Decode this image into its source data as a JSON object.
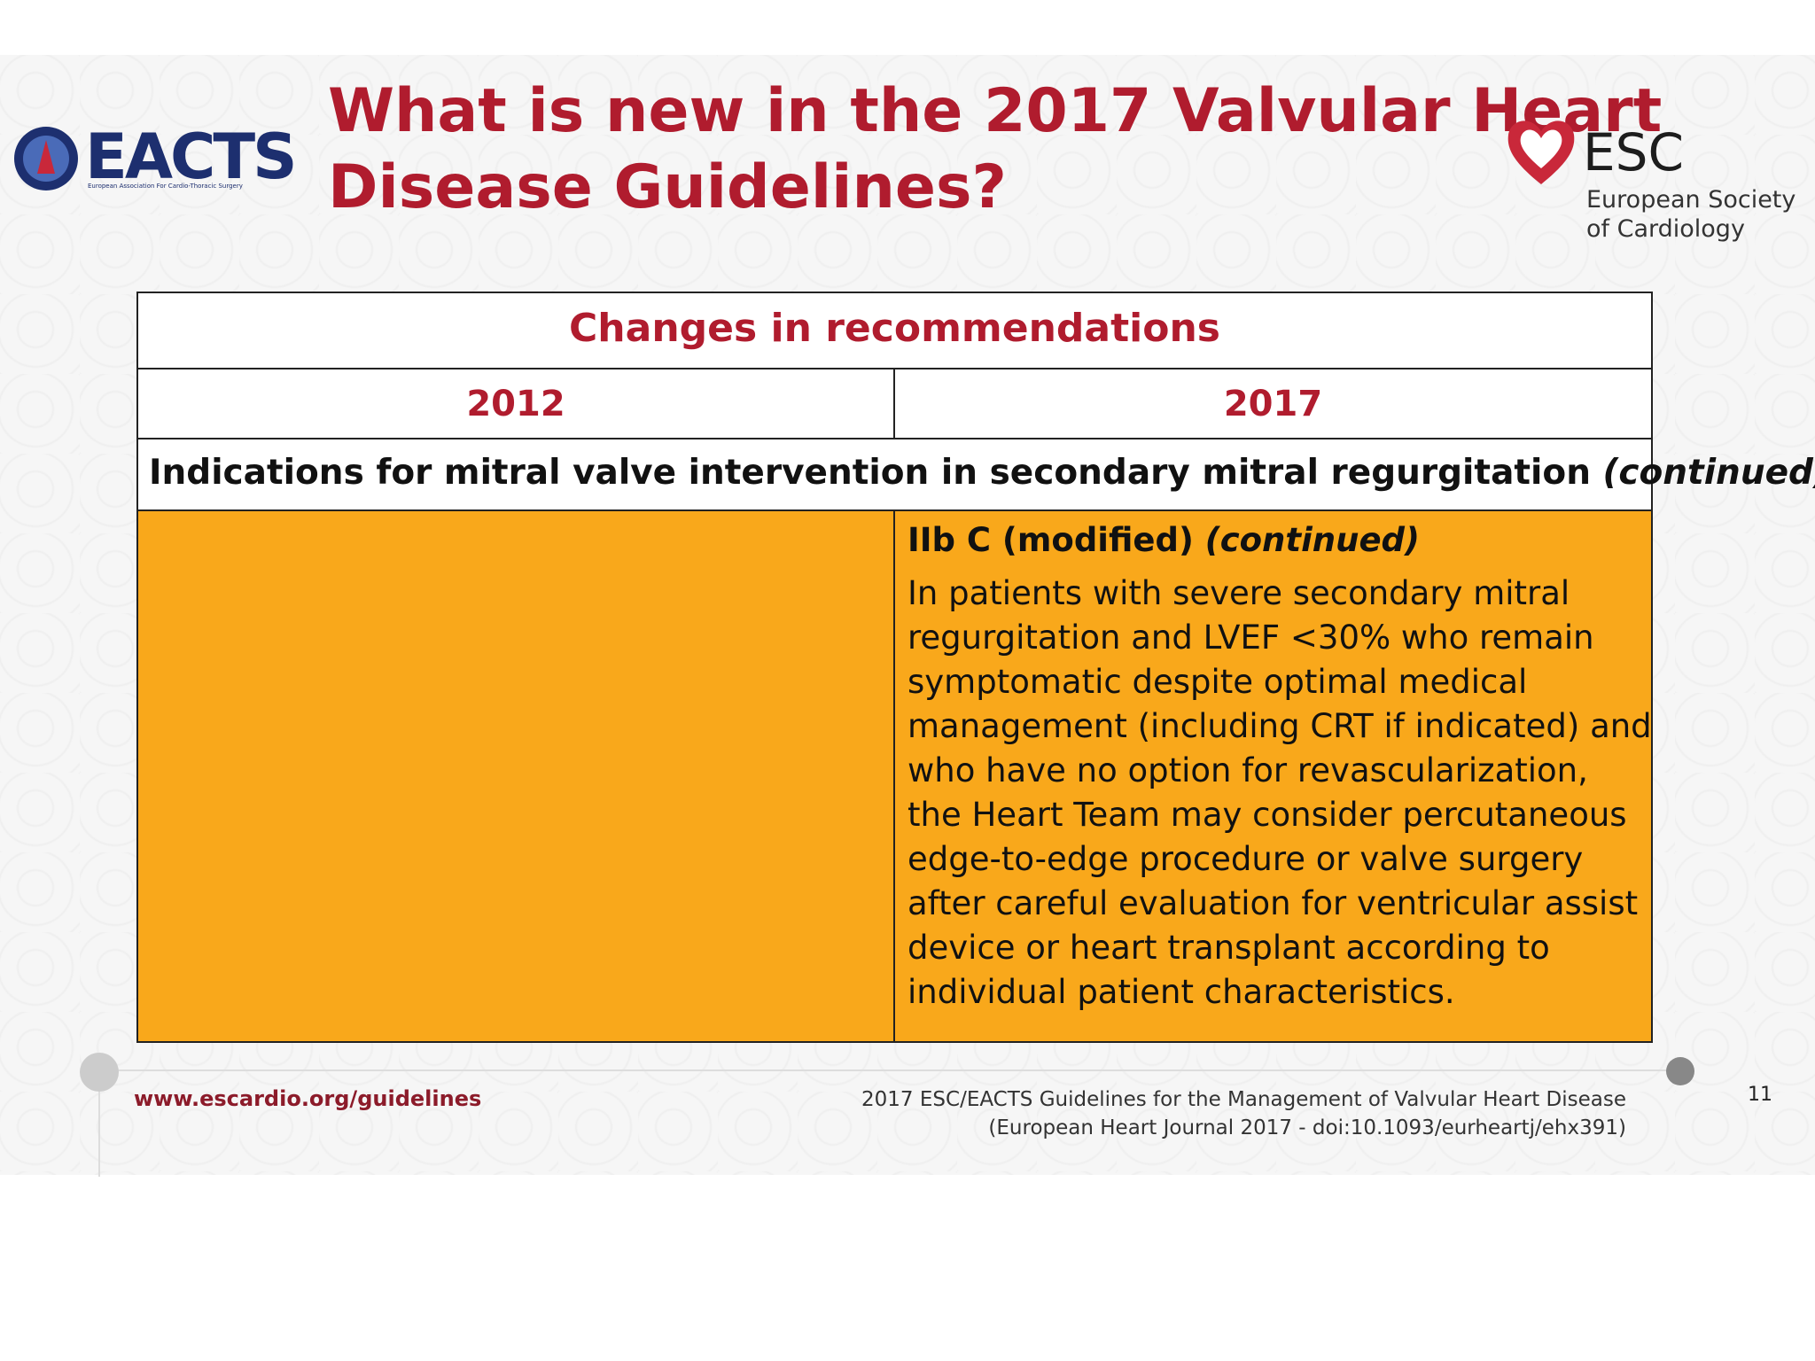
{
  "header": {
    "title_lines": [
      "What is new in the 2017 Valvular Heart",
      "Disease Guidelines?"
    ],
    "eacts_logo": {
      "name": "EACTS",
      "subtitle": "European Association For Cardio-Thoracic Surgery"
    },
    "esc_logo": {
      "name": "ESC",
      "subtitle_lines": [
        "European Society",
        "of Cardiology"
      ]
    }
  },
  "table": {
    "caption": "Changes in recommendations",
    "columns": [
      "2012",
      "2017"
    ],
    "section": "Indications for mitral valve intervention in secondary mitral regurgitation",
    "section_note": "(continued)",
    "rows": [
      {
        "right": {
          "class": "IIb C (modified)",
          "note": "(continued)",
          "lines": [
            "In patients with severe secondary mitral",
            "regurgitation and LVEF <30% who remain",
            "symptomatic despite optimal medical",
            "management (including CRT if indicated) and",
            "who have no option for revascularization,",
            "the Heart Team may consider percutaneous",
            "edge-to-edge procedure or valve surgery",
            "after careful evaluation for ventricular assist",
            "device or heart transplant according to",
            "individual patient characteristics."
          ]
        }
      }
    ]
  },
  "footer": {
    "url": "www.escardio.org/guidelines",
    "citation_lines": [
      "2017 ESC/EACTS Guidelines for the Management of Valvular Heart Disease",
      "(European Heart Journal 2017 - doi:10.1093/eurheartj/ehx391)"
    ],
    "page": "11"
  }
}
